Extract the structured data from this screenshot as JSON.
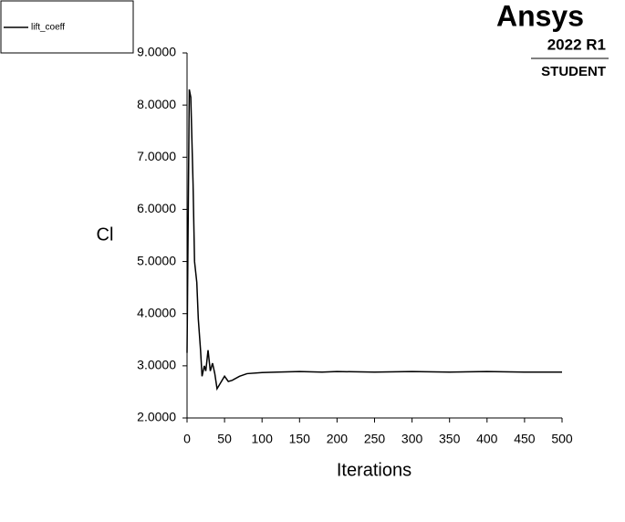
{
  "chart_data": {
    "type": "line",
    "x_label": "Iterations",
    "y_label": "Cl",
    "x": [
      0,
      3,
      5,
      8,
      10,
      13,
      15,
      18,
      20,
      23,
      25,
      28,
      31,
      34,
      37,
      40,
      45,
      50,
      55,
      60,
      70,
      80,
      100,
      120,
      150,
      180,
      200,
      250,
      300,
      350,
      400,
      450,
      500
    ],
    "series": [
      {
        "name": "lift_coeff",
        "color": "#000000",
        "values": [
          3.25,
          8.3,
          8.15,
          6.5,
          5.0,
          4.6,
          3.9,
          3.3,
          2.8,
          3.0,
          2.9,
          3.3,
          2.9,
          3.05,
          2.85,
          2.56,
          2.68,
          2.8,
          2.7,
          2.72,
          2.8,
          2.85,
          2.87,
          2.88,
          2.89,
          2.88,
          2.89,
          2.88,
          2.89,
          2.88,
          2.89,
          2.88,
          2.88
        ]
      }
    ],
    "xlim": [
      0,
      500
    ],
    "xticks": [
      0,
      50,
      100,
      150,
      200,
      250,
      300,
      350,
      400,
      450,
      500
    ],
    "ylim": [
      2,
      9
    ],
    "yticks": [
      {
        "value": 2,
        "label": "2.0000"
      },
      {
        "value": 3,
        "label": "3.0000"
      },
      {
        "value": 4,
        "label": "4.0000"
      },
      {
        "value": 5,
        "label": "5.0000"
      },
      {
        "value": 6,
        "label": "6.0000"
      },
      {
        "value": 7,
        "label": "7.0000"
      },
      {
        "value": 8,
        "label": "8.0000"
      },
      {
        "value": 9,
        "label": "9.0000"
      }
    ],
    "grid": false,
    "legend": "upper left"
  },
  "watermark": {
    "brand": "Ansys",
    "version": "2022 R1",
    "edition": "STUDENT"
  }
}
